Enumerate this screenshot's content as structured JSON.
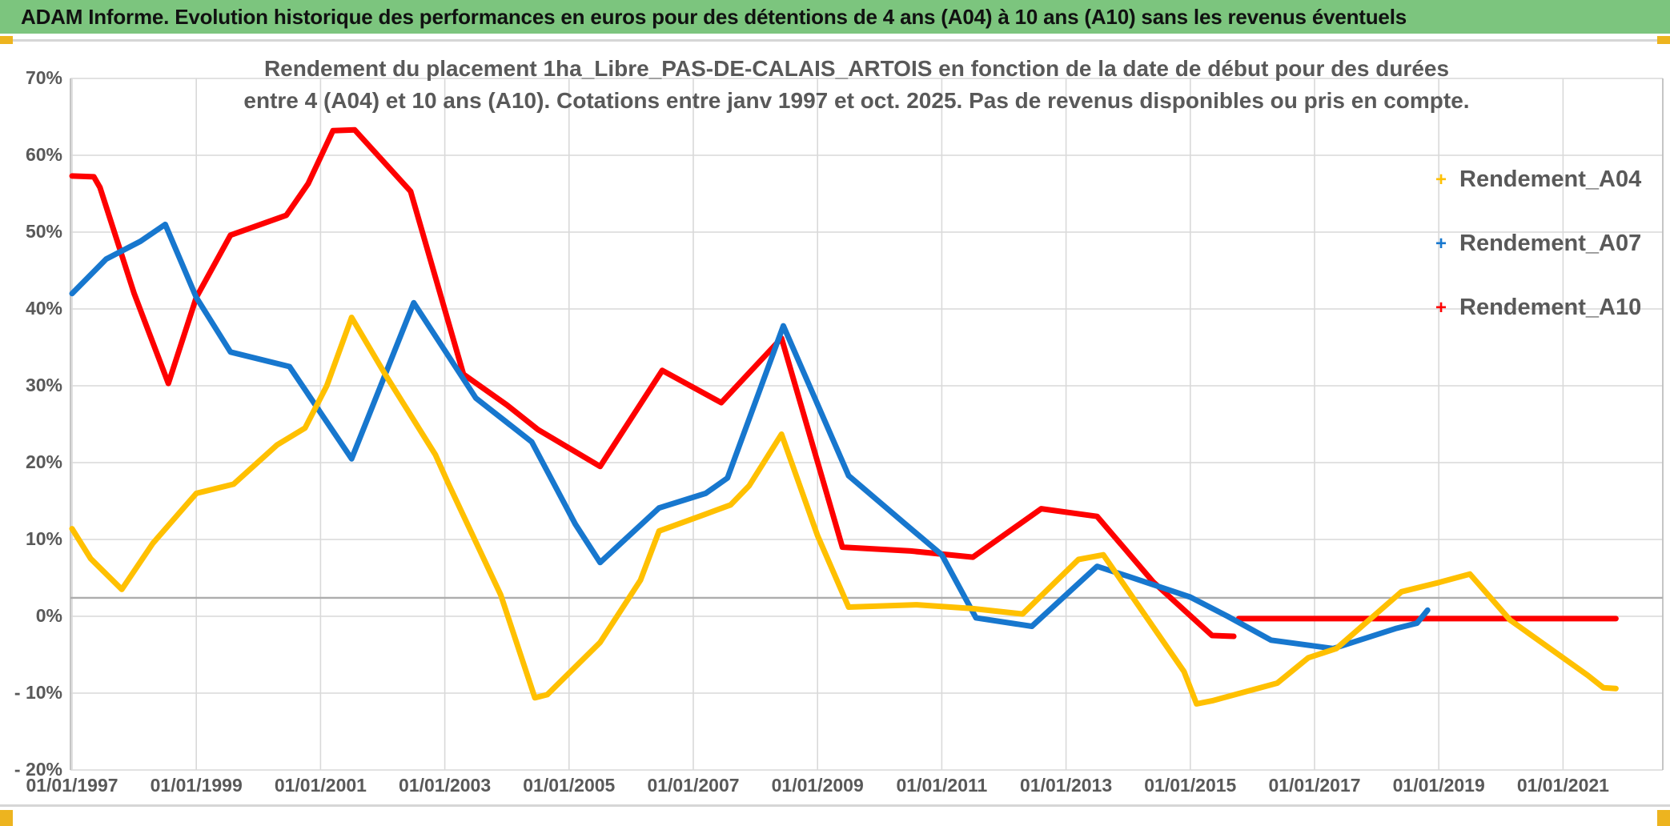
{
  "window": {
    "title_bar": "ADAM Informe. Evolution historique des performances en euros pour des détentions de 4 ans (A04) à 10 ans (A10) sans les revenus éventuels"
  },
  "colors": {
    "banner_green": "#7CC57E",
    "corner_gold": "#EDB41F",
    "grid": "#D9D9D9",
    "axis_border": "#BFBFBF",
    "extra_line": "#ADADAD",
    "text_gray": "#595959",
    "series_a04": "#FFC000",
    "series_a07": "#1777CE",
    "series_a10": "#FE0000"
  },
  "chart_data": {
    "type": "line",
    "title_line1": "Rendement du placement 1ha_Libre_PAS-DE-CALAIS_ARTOIS en fonction de la date de début pour des durées",
    "title_line2": "entre 4 (A04) et 10 ans (A10). Cotations entre janv 1997 et oct. 2025. Pas de revenus disponibles ou pris en compte.",
    "xlabel": "",
    "ylabel": "",
    "ylim": [
      -20,
      70
    ],
    "xlim_years": [
      1996.95,
      2022.6
    ],
    "grid": "on",
    "legend_position": "right",
    "y_tick_labels": [
      "70%",
      "60%",
      "50%",
      "40%",
      "30%",
      "20%",
      "10%",
      "0%",
      "- 10%",
      "- 20%"
    ],
    "y_tick_values": [
      70,
      60,
      50,
      40,
      30,
      20,
      10,
      0,
      -10,
      -20
    ],
    "x_tick_labels": [
      "01/01/1997",
      "01/01/1999",
      "01/01/2001",
      "01/01/2003",
      "01/01/2005",
      "01/01/2007",
      "01/01/2009",
      "01/01/2011",
      "01/01/2013",
      "01/01/2015",
      "01/01/2017",
      "01/01/2019",
      "01/01/2021"
    ],
    "x_tick_years": [
      1997,
      1999,
      2001,
      2003,
      2005,
      2007,
      2009,
      2011,
      2013,
      2015,
      2017,
      2019,
      2021
    ],
    "extra_line_pct": 2.4,
    "legend": [
      {
        "label": "Rendement_A04",
        "marker": "+",
        "color": "#FFC000"
      },
      {
        "label": "Rendement_A07",
        "marker": "+",
        "color": "#1777CE"
      },
      {
        "label": "Rendement_A10",
        "marker": "+",
        "color": "#FE0000"
      }
    ],
    "series": [
      {
        "name": "Rendement_A10",
        "color": "#FE0000",
        "segments": [
          [
            [
              1997.0,
              57.3
            ],
            [
              1997.35,
              57.2
            ],
            [
              1997.45,
              55.8
            ],
            [
              1998.0,
              42.0
            ],
            [
              1998.55,
              30.3
            ],
            [
              1999.0,
              41.5
            ],
            [
              1999.55,
              49.6
            ],
            [
              2000.45,
              52.2
            ],
            [
              2000.8,
              56.3
            ],
            [
              2001.2,
              63.2
            ],
            [
              2001.55,
              63.3
            ],
            [
              2002.45,
              55.3
            ],
            [
              2003.3,
              31.5
            ],
            [
              2004.0,
              27.5
            ],
            [
              2004.5,
              24.3
            ],
            [
              2005.5,
              19.5
            ],
            [
              2006.5,
              32.0
            ],
            [
              2007.45,
              27.8
            ],
            [
              2008.42,
              36.2
            ],
            [
              2009.4,
              9.0
            ],
            [
              2010.5,
              8.5
            ],
            [
              2011.5,
              7.7
            ],
            [
              2012.6,
              14.0
            ],
            [
              2013.5,
              13.0
            ],
            [
              2014.4,
              4.5
            ],
            [
              2015.35,
              -2.5
            ],
            [
              2015.7,
              -2.6
            ]
          ],
          [
            [
              2015.78,
              -0.3
            ],
            [
              2021.85,
              -0.3
            ]
          ]
        ]
      },
      {
        "name": "Rendement_A07",
        "color": "#1777CE",
        "segments": [
          [
            [
              1997.0,
              42.0
            ],
            [
              1997.55,
              46.5
            ],
            [
              1998.1,
              48.8
            ],
            [
              1998.5,
              51.0
            ],
            [
              1999.0,
              41.5
            ],
            [
              1999.55,
              34.4
            ],
            [
              2000.5,
              32.5
            ],
            [
              2001.5,
              20.5
            ],
            [
              2002.5,
              40.8
            ],
            [
              2003.5,
              28.4
            ],
            [
              2004.4,
              22.7
            ],
            [
              2005.1,
              12.0
            ],
            [
              2005.5,
              7.0
            ],
            [
              2006.45,
              14.1
            ],
            [
              2007.2,
              16.0
            ],
            [
              2007.55,
              18.0
            ],
            [
              2008.45,
              37.8
            ],
            [
              2009.5,
              18.3
            ],
            [
              2010.4,
              12.1
            ],
            [
              2011.0,
              8.0
            ],
            [
              2011.55,
              -0.2
            ],
            [
              2012.45,
              -1.3
            ],
            [
              2013.5,
              6.5
            ],
            [
              2014.0,
              5.2
            ],
            [
              2015.0,
              2.5
            ],
            [
              2015.6,
              0.0
            ],
            [
              2016.3,
              -3.1
            ],
            [
              2017.3,
              -4.2
            ],
            [
              2018.3,
              -1.6
            ],
            [
              2018.65,
              -0.9
            ],
            [
              2018.82,
              0.8
            ]
          ]
        ]
      },
      {
        "name": "Rendement_A04",
        "color": "#FFC000",
        "segments": [
          [
            [
              1997.0,
              11.4
            ],
            [
              1997.3,
              7.5
            ],
            [
              1997.8,
              3.5
            ],
            [
              1998.3,
              9.5
            ],
            [
              1999.0,
              16.0
            ],
            [
              1999.6,
              17.2
            ],
            [
              2000.3,
              22.3
            ],
            [
              2000.75,
              24.5
            ],
            [
              2001.1,
              30.0
            ],
            [
              2001.5,
              38.9
            ],
            [
              2002.04,
              31.5
            ],
            [
              2002.85,
              21.0
            ],
            [
              2003.05,
              17.4
            ],
            [
              2003.9,
              2.8
            ],
            [
              2004.45,
              -10.6
            ],
            [
              2004.65,
              -10.2
            ],
            [
              2005.5,
              -3.4
            ],
            [
              2006.15,
              4.7
            ],
            [
              2006.45,
              11.1
            ],
            [
              2007.2,
              13.3
            ],
            [
              2007.6,
              14.5
            ],
            [
              2007.9,
              17.0
            ],
            [
              2008.42,
              23.7
            ],
            [
              2009.0,
              10.5
            ],
            [
              2009.5,
              1.2
            ],
            [
              2010.6,
              1.5
            ],
            [
              2011.5,
              1.0
            ],
            [
              2012.3,
              0.3
            ],
            [
              2013.2,
              7.4
            ],
            [
              2013.6,
              8.0
            ],
            [
              2014.9,
              -7.2
            ],
            [
              2015.1,
              -11.4
            ],
            [
              2015.35,
              -11.0
            ],
            [
              2016.4,
              -8.7
            ],
            [
              2016.9,
              -5.4
            ],
            [
              2017.35,
              -4.2
            ],
            [
              2018.4,
              3.2
            ],
            [
              2019.0,
              4.4
            ],
            [
              2019.5,
              5.5
            ],
            [
              2020.15,
              -0.5
            ],
            [
              2021.4,
              -7.7
            ],
            [
              2021.65,
              -9.3
            ],
            [
              2021.85,
              -9.4
            ]
          ]
        ]
      }
    ]
  }
}
